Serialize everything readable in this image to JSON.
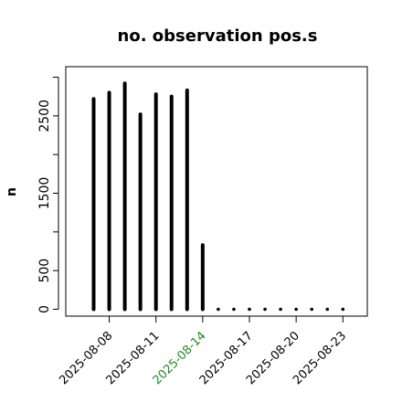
{
  "chart_data": {
    "type": "bar",
    "title": "no. observation pos.s",
    "xlabel": "",
    "ylabel": "n",
    "ylim": [
      0,
      3000
    ],
    "y_ticks": [
      0,
      500,
      1000,
      1500,
      2000,
      2500,
      3000
    ],
    "y_tick_labels": [
      "0",
      "500",
      "",
      "1500",
      "",
      "2500",
      ""
    ],
    "grid": false,
    "x": [
      "2025-08-07",
      "2025-08-08",
      "2025-08-09",
      "2025-08-10",
      "2025-08-11",
      "2025-08-12",
      "2025-08-13",
      "2025-08-14",
      "2025-08-15",
      "2025-08-16",
      "2025-08-17",
      "2025-08-18",
      "2025-08-19",
      "2025-08-20",
      "2025-08-21",
      "2025-08-22",
      "2025-08-23"
    ],
    "values": [
      2720,
      2800,
      2920,
      2520,
      2780,
      2750,
      2830,
      830,
      0,
      0,
      0,
      0,
      0,
      0,
      0,
      0,
      0
    ],
    "x_tick_labels": [
      {
        "label": "2025-08-08",
        "color": "#000000"
      },
      {
        "label": "2025-08-11",
        "color": "#000000"
      },
      {
        "label": "2025-08-14",
        "color": "#228B22"
      },
      {
        "label": "2025-08-17",
        "color": "#000000"
      },
      {
        "label": "2025-08-20",
        "color": "#000000"
      },
      {
        "label": "2025-08-23",
        "color": "#000000"
      }
    ],
    "bar_color": "#000000"
  }
}
